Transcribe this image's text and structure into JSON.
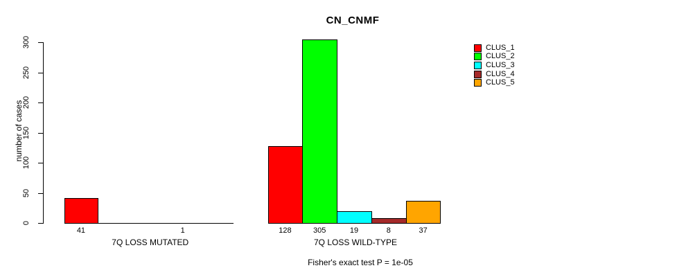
{
  "chart_data": {
    "type": "bar",
    "title": "CN_CNMF",
    "ylabel": "number of cases",
    "ylim": [
      0,
      300
    ],
    "yticks": [
      0,
      50,
      100,
      150,
      200,
      250,
      300
    ],
    "grid": false,
    "legend_position": "right-outside",
    "categories": [
      "CLUS_1",
      "CLUS_2",
      "CLUS_3",
      "CLUS_4",
      "CLUS_5"
    ],
    "groups": [
      {
        "label": "7Q LOSS MUTATED",
        "values": [
          41,
          0,
          0,
          1,
          0
        ],
        "bar_labels": [
          "41",
          "",
          "",
          "1",
          ""
        ]
      },
      {
        "label": "7Q LOSS WILD-TYPE",
        "values": [
          128,
          305,
          19,
          8,
          37
        ],
        "bar_labels": [
          "128",
          "305",
          "19",
          "8",
          "37"
        ]
      }
    ],
    "legend": [
      {
        "label": "CLUS_1",
        "color": "#ff0000"
      },
      {
        "label": "CLUS_2",
        "color": "#00ff00"
      },
      {
        "label": "CLUS_3",
        "color": "#00ffff"
      },
      {
        "label": "CLUS_4",
        "color": "#a52a2a"
      },
      {
        "label": "CLUS_5",
        "color": "#ffa500"
      }
    ],
    "bar_border_color": "#000000",
    "axis_color": "#000000",
    "annotation": "Fisher's exact test P = 1e-05"
  }
}
